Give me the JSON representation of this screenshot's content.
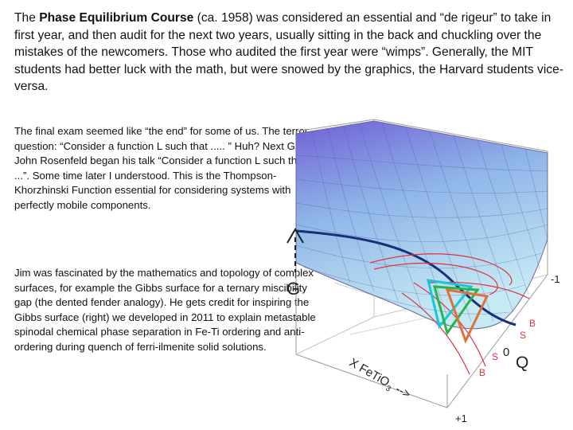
{
  "intro": {
    "part1": "The ",
    "course_name": "Phase Equilibrium Course",
    "part2": " (ca. 1958) was considered an essential and “de rigeur” to take in first year, and then audit for the next two years, usually sitting in the back and chuckling over the mistakes of the newcomers.  Those who audited the first year were “wimps”.  Generally, the MIT students had better luck with the math, but were snowed by the graphics, the Harvard students vice-versa."
  },
  "paragraph1": "The final exam seemed like “the end” for some of us. The terror question: “Consider a function L such that ..... ” Huh?  Next GSA John Rosenfeld began his talk “Consider a function L such that... ...”.  Some time later I understood. This is the Thompson-Khorzhinski Function essential for considering systems with perfectly mobile components.",
  "paragraph2": "Jim was fascinated by the mathematics and topology of complex surfaces, for example the Gibbs surface for a ternary miscibility gap (the dented fender analogy).  He gets credit for inspiring the Gibbs surface (right) we developed in 2011 to explain metastable spinodal chemical phase separation in Fe-Ti ordering and anti-ordering during quench of ferri-ilmenite solid solutions.",
  "figure": {
    "axis_g": "G",
    "axis_x": "X FeTiO",
    "axis_x_sub": "3",
    "axis_x_arrow": "-->",
    "axis_q": "Q",
    "tick_minus1": "-1",
    "tick_0": "0",
    "tick_plus1": "+1",
    "label_b_upper": "B",
    "label_s_upper": "S",
    "label_s_lower": "S",
    "label_b_lower": "B",
    "colors": {
      "surface_top": "#6f5fd6",
      "surface_mid": "#8fb6e8",
      "surface_low": "#bfe6f2",
      "spinodal_curve": "#1a2f7a",
      "binodal_lines": "#e03040",
      "triangle_cyan": "#19c7d8",
      "triangle_green": "#2ab34a",
      "triangle_orange": "#e0703a"
    }
  }
}
